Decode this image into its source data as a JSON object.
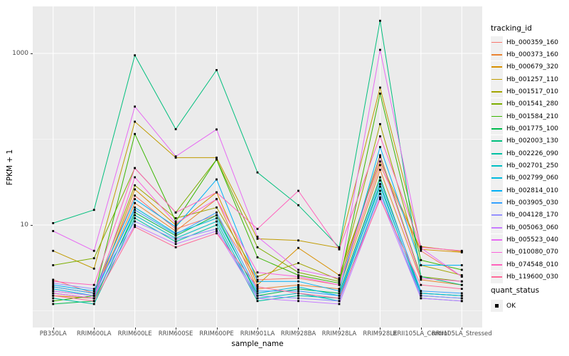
{
  "figure": {
    "x_label": "sample_name",
    "y_label": "FPKM + 1",
    "y_tick_labels": [
      "1000",
      "10"
    ],
    "panel_bg": "#EBEBEB",
    "grid_color": "#FFFFFF",
    "point_color": "#000000",
    "tick_text_color": "#4D4D4D"
  },
  "legend": {
    "tracking_title": "tracking_id",
    "quant_title": "quant_status",
    "quant_items": [
      {
        "label": "OK",
        "marker": "black-square"
      }
    ]
  },
  "chart_data": {
    "type": "line",
    "title": "",
    "xlabel": "sample_name",
    "ylabel": "FPKM + 1",
    "y_scale": "log10",
    "y_major_ticks": [
      10,
      1000
    ],
    "y_minor_gridlines": [
      1,
      100
    ],
    "grid": true,
    "legend_position": "right",
    "point_status_legend": {
      "title": "quant_status",
      "label": "OK"
    },
    "categories": [
      "PB350LA",
      "RRIM600LA",
      "RRIM600LE",
      "RRIM600SE",
      "RRIM600PE",
      "RRIM901LA",
      "RRIM928BA",
      "RRIM928LA",
      "RRIM928LE",
      "RRII105LA_Control",
      "RRII105LA_Stressed"
    ],
    "series": [
      {
        "name": "Hb_000359_160",
        "color": "#F8766D",
        "values": [
          2.3,
          1.6,
          22,
          9,
          13,
          2.3,
          2.4,
          2.0,
          50,
          5.0,
          2.5
        ]
      },
      {
        "name": "Hb_000373_160",
        "color": "#EA8331",
        "values": [
          1.7,
          1.5,
          18,
          8.5,
          20,
          1.8,
          2.0,
          1.8,
          44,
          2.3,
          2.0
        ]
      },
      {
        "name": "Hb_000679_320",
        "color": "#D89000",
        "values": [
          1.5,
          1.4,
          26,
          10,
          24,
          2.0,
          5.4,
          2.6,
          55,
          5.2,
          4.8
        ]
      },
      {
        "name": "Hb_001257_110",
        "color": "#C09B00",
        "values": [
          5.0,
          3.1,
          160,
          61,
          61,
          6.9,
          6.6,
          5.4,
          400,
          5.6,
          4.9
        ]
      },
      {
        "name": "Hb_001517_010",
        "color": "#A3A500",
        "values": [
          1.9,
          1.6,
          29,
          12,
          16,
          2.5,
          3.6,
          2.3,
          150,
          3.4,
          2.6
        ]
      },
      {
        "name": "Hb_001541_280",
        "color": "#7CAE00",
        "values": [
          3.4,
          4.1,
          46,
          14,
          58,
          5.5,
          2.8,
          2.2,
          65,
          2.5,
          2.2
        ]
      },
      {
        "name": "Hb_001584_210",
        "color": "#39B600",
        "values": [
          1.3,
          1.5,
          115,
          11,
          58,
          4.2,
          2.6,
          2.1,
          340,
          3.9,
          3.0
        ]
      },
      {
        "name": "Hb_001775_100",
        "color": "#00BB4E",
        "values": [
          1.2,
          1.3,
          14,
          7.5,
          13,
          1.5,
          1.8,
          1.6,
          36,
          1.6,
          1.5
        ]
      },
      {
        "name": "Hb_002003_130",
        "color": "#00BF7D",
        "values": [
          10.5,
          15,
          950,
          131,
          640,
          41,
          17,
          5.5,
          2400,
          2.5,
          2.0
        ]
      },
      {
        "name": "Hb_002226_090",
        "color": "#00C1A3",
        "values": [
          1.4,
          1.2,
          12,
          6.4,
          10,
          1.3,
          1.5,
          1.4,
          30,
          1.5,
          1.4
        ]
      },
      {
        "name": "Hb_002701_250",
        "color": "#00BFC4",
        "values": [
          1.6,
          1.4,
          13,
          7.0,
          11,
          1.4,
          1.6,
          1.3,
          25,
          1.4,
          1.3
        ]
      },
      {
        "name": "Hb_002799_060",
        "color": "#00BAE0",
        "values": [
          1.8,
          1.5,
          16,
          8.0,
          12,
          1.6,
          1.9,
          1.5,
          28,
          1.6,
          1.5
        ]
      },
      {
        "name": "Hb_002814_010",
        "color": "#00B0F6",
        "values": [
          2.0,
          1.7,
          20,
          9.5,
          34,
          2.2,
          2.2,
          1.7,
          81,
          3.4,
          3.4
        ]
      },
      {
        "name": "Hb_003905_030",
        "color": "#35A2FF",
        "values": [
          1.9,
          1.6,
          15,
          7.8,
          14,
          1.7,
          1.7,
          1.5,
          33,
          1.7,
          1.6
        ]
      },
      {
        "name": "Hb_004128_170",
        "color": "#9590FF",
        "values": [
          2.1,
          1.8,
          11,
          6.8,
          9,
          1.5,
          1.4,
          1.3,
          23,
          1.5,
          1.4
        ]
      },
      {
        "name": "Hb_005063_060",
        "color": "#C77CFF",
        "values": [
          1.7,
          1.5,
          10,
          6.0,
          8.5,
          1.4,
          1.3,
          1.2,
          21,
          1.4,
          1.3
        ]
      },
      {
        "name": "Hb_005523_040",
        "color": "#E76BF3",
        "values": [
          8.5,
          5.0,
          240,
          63,
          130,
          7.3,
          3.0,
          2.4,
          1100,
          5.4,
          2.5
        ]
      },
      {
        "name": "Hb_010080_070",
        "color": "#FA62DB",
        "values": [
          1.6,
          1.4,
          36,
          10.5,
          20,
          2.8,
          2.5,
          2.0,
          62,
          2.4,
          2.2
        ]
      },
      {
        "name": "Hb_074548_010",
        "color": "#FF62BC",
        "values": [
          2.2,
          2.0,
          46,
          14,
          24,
          9.0,
          25,
          5.2,
          108,
          5.5,
          5.0
        ]
      },
      {
        "name": "Hb_119600_030",
        "color": "#FF6A98",
        "values": [
          1.5,
          1.3,
          9.5,
          5.5,
          8.0,
          1.9,
          1.6,
          1.4,
          20,
          2.0,
          1.8
        ]
      }
    ]
  }
}
